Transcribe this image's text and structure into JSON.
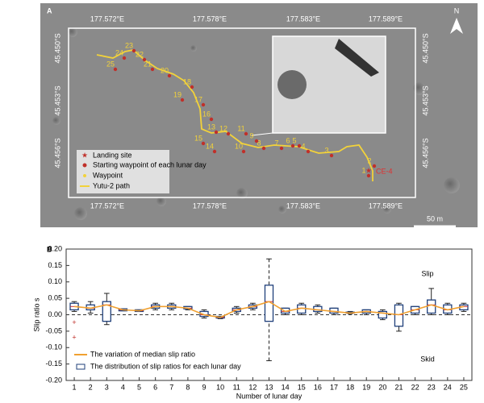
{
  "panel_a": {
    "label": "A",
    "north": "N",
    "lon_labels": [
      "177.572°E",
      "177.578°E",
      "177.583°E",
      "177.589°E"
    ],
    "lat_labels": [
      "45.450°S",
      "45.453°S",
      "45.456°S"
    ],
    "legend": [
      "Landing site",
      "Starting waypoint of each lunar day",
      "Waypoint",
      "Yutu-2 path"
    ],
    "scale": "50 m",
    "site": "CE-4",
    "day_labels": [
      "1",
      "2",
      "3",
      "4",
      "5",
      "6",
      "7",
      "8",
      "9",
      "10",
      "11",
      "12",
      "13",
      "14",
      "15",
      "16",
      "17",
      "18",
      "19",
      "20",
      "21",
      "22",
      "23",
      "24",
      "25"
    ]
  },
  "chart_data": {
    "type": "box",
    "panel_label": "B",
    "xlabel": "Number of lunar day",
    "ylabel": "Slip ratio s",
    "annotations": [
      "Slip",
      "Skid"
    ],
    "legend": [
      "The variation of median slip ratio",
      "The distribution of slip ratios for each lunar day"
    ],
    "categories": [
      1,
      2,
      3,
      4,
      5,
      6,
      7,
      8,
      9,
      10,
      11,
      12,
      13,
      14,
      15,
      16,
      17,
      18,
      19,
      20,
      21,
      22,
      23,
      24,
      25
    ],
    "lower": [
      0.01,
      0.005,
      -0.03,
      0.012,
      0.01,
      0.015,
      0.015,
      0.015,
      -0.01,
      -0.012,
      0.005,
      0.015,
      -0.14,
      0.0,
      0.0,
      0.005,
      0.0,
      0.003,
      0.0,
      -0.015,
      -0.05,
      0.0,
      0.0,
      0.0,
      0.01
    ],
    "q1": [
      0.015,
      0.015,
      -0.02,
      0.012,
      0.01,
      0.02,
      0.02,
      0.018,
      -0.005,
      -0.01,
      0.01,
      0.02,
      -0.02,
      0.005,
      0.005,
      0.01,
      0.005,
      0.005,
      0.005,
      -0.01,
      -0.035,
      0.005,
      0.005,
      0.005,
      0.015
    ],
    "median": [
      0.025,
      0.02,
      0.03,
      0.015,
      0.012,
      0.025,
      0.025,
      0.02,
      0.0,
      -0.008,
      0.015,
      0.025,
      0.04,
      0.01,
      0.02,
      0.015,
      0.01,
      0.005,
      0.01,
      0.005,
      0.0,
      0.015,
      0.03,
      0.015,
      0.025
    ],
    "q3": [
      0.035,
      0.03,
      0.04,
      0.018,
      0.015,
      0.03,
      0.03,
      0.025,
      0.01,
      -0.005,
      0.02,
      0.03,
      0.09,
      0.02,
      0.03,
      0.025,
      0.02,
      0.008,
      0.015,
      0.01,
      0.03,
      0.025,
      0.045,
      0.03,
      0.03
    ],
    "upper": [
      0.04,
      0.04,
      0.065,
      0.018,
      0.015,
      0.035,
      0.035,
      0.025,
      0.015,
      -0.005,
      0.025,
      0.035,
      0.17,
      0.02,
      0.035,
      0.03,
      0.02,
      0.01,
      0.015,
      0.015,
      0.035,
      0.025,
      0.08,
      0.035,
      0.035
    ],
    "outliers": [
      {
        "x": 1,
        "values": [
          -0.025,
          -0.07
        ]
      }
    ],
    "ylim": [
      -0.2,
      0.2
    ],
    "yticks": [
      {
        "value": -0.2,
        "label": "-0.20"
      },
      {
        "value": -0.15,
        "label": "-0.15"
      },
      {
        "value": -0.1,
        "label": "-0.10"
      },
      {
        "value": -0.05,
        "label": "-0.05"
      },
      {
        "value": 0,
        "label": "0.00"
      },
      {
        "value": 0.05,
        "label": "0.05"
      },
      {
        "value": 0.1,
        "label": "0.10"
      },
      {
        "value": 0.15,
        "label": "0.15"
      },
      {
        "value": 0.2,
        "label": "0.20"
      }
    ],
    "box_color": "#1f3f7a",
    "median_color": "#f0a030",
    "outlier_color": "#c0302a"
  }
}
